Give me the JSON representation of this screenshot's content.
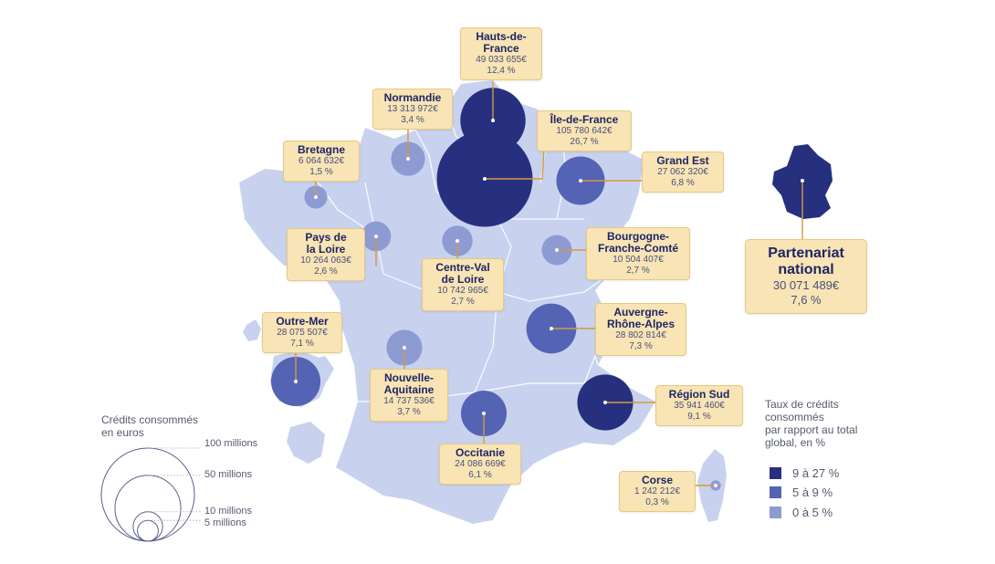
{
  "colors": {
    "high": "#27307e",
    "mid": "#5563b4",
    "low": "#8e9bd3",
    "land": "#c8d2ef",
    "border": "#ffffff",
    "label_bg": "#f8e4b4",
    "leader": "#d49a3c"
  },
  "regions": [
    {
      "id": "hauts-de-france",
      "name": "Hauts-de-\nFrance",
      "amount": "49 033 655€",
      "pct": "12,4 %",
      "value_eur": 49033655,
      "share_pct": 12.4,
      "class": "high"
    },
    {
      "id": "ile-de-france",
      "name": "Île-de-France",
      "amount": "105 780 642€",
      "pct": "26,7 %",
      "value_eur": 105780642,
      "share_pct": 26.7,
      "class": "high"
    },
    {
      "id": "normandie",
      "name": "Normandie",
      "amount": "13 313 972€",
      "pct": "3,4 %",
      "value_eur": 13313972,
      "share_pct": 3.4,
      "class": "low"
    },
    {
      "id": "bretagne",
      "name": "Bretagne",
      "amount": "6 064 632€",
      "pct": "1,5 %",
      "value_eur": 6064632,
      "share_pct": 1.5,
      "class": "low"
    },
    {
      "id": "grand-est",
      "name": "Grand Est",
      "amount": "27 062 320€",
      "pct": "6,8 %",
      "value_eur": 27062320,
      "share_pct": 6.8,
      "class": "mid"
    },
    {
      "id": "pays-de-la-loire",
      "name": "Pays de\nla Loire",
      "amount": "10 264 063€",
      "pct": "2,6 %",
      "value_eur": 10264063,
      "share_pct": 2.6,
      "class": "low"
    },
    {
      "id": "centre-val-de-loire",
      "name": "Centre-Val\nde Loire",
      "amount": "10 742 965€",
      "pct": "2,7 %",
      "value_eur": 10742965,
      "share_pct": 2.7,
      "class": "low"
    },
    {
      "id": "bourgogne-franche-comte",
      "name": "Bourgogne-\nFranche-Comté",
      "amount": "10 504 407€",
      "pct": "2,7 %",
      "value_eur": 10504407,
      "share_pct": 2.7,
      "class": "low"
    },
    {
      "id": "auvergne-rhone-alpes",
      "name": "Auvergne-\nRhône-Alpes",
      "amount": "28 802 814€",
      "pct": "7,3 %",
      "value_eur": 28802814,
      "share_pct": 7.3,
      "class": "mid"
    },
    {
      "id": "outre-mer",
      "name": "Outre-Mer",
      "amount": "28 075 507€",
      "pct": "7,1 %",
      "value_eur": 28075507,
      "share_pct": 7.1,
      "class": "mid"
    },
    {
      "id": "nouvelle-aquitaine",
      "name": "Nouvelle-\nAquitaine",
      "amount": "14 737 536€",
      "pct": "3,7 %",
      "value_eur": 14737536,
      "share_pct": 3.7,
      "class": "low"
    },
    {
      "id": "occitanie",
      "name": "Occitanie",
      "amount": "24 086 669€",
      "pct": "6,1 %",
      "value_eur": 24086669,
      "share_pct": 6.1,
      "class": "mid"
    },
    {
      "id": "region-sud",
      "name": "Région Sud",
      "amount": "35 941 460€",
      "pct": "9,1 %",
      "value_eur": 35941460,
      "share_pct": 9.1,
      "class": "high"
    },
    {
      "id": "corse",
      "name": "Corse",
      "amount": "1 242 212€",
      "pct": "0,3 %",
      "value_eur": 1242212,
      "share_pct": 0.3,
      "class": "low"
    }
  ],
  "national": {
    "name": "Partenariat\nnational",
    "amount": "30 071 489€",
    "pct": "7,6 %"
  },
  "size_legend": {
    "title": "Crédits consommés\nen euros",
    "items": [
      {
        "label": "100 millions",
        "value_eur": 100000000
      },
      {
        "label": "50 millions",
        "value_eur": 50000000
      },
      {
        "label": "10 millions",
        "value_eur": 10000000
      },
      {
        "label": "5 millions",
        "value_eur": 5000000
      }
    ]
  },
  "color_legend": {
    "title": "Taux de crédits\nconsommés\npar rapport au total\nglobal, en %",
    "items": [
      {
        "label": "9 à 27 %",
        "class": "high"
      },
      {
        "label": "5 à 9 %",
        "class": "mid"
      },
      {
        "label": "0 à 5 %",
        "class": "low"
      }
    ]
  }
}
